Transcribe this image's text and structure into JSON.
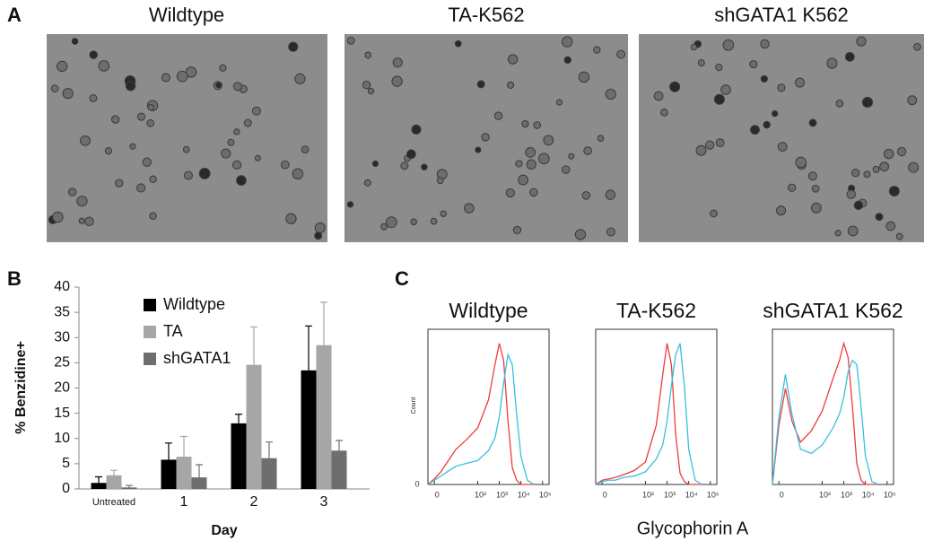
{
  "panels": {
    "a": "A",
    "b": "B",
    "c": "C"
  },
  "images": {
    "titles": [
      "Wildtype",
      "TA-K562",
      "shGATA1 K562"
    ]
  },
  "chart_data": [
    {
      "type": "bar",
      "ylabel": "% Benzidine+",
      "xlabel": "Day",
      "categories": [
        "Untreated",
        "1",
        "2",
        "3"
      ],
      "series": [
        {
          "name": "Wildtype",
          "color": "#000000",
          "values": [
            1.2,
            5.8,
            13,
            23.5
          ],
          "errors": [
            1.2,
            3.3,
            1.8,
            8.8
          ]
        },
        {
          "name": "TA",
          "color": "#a6a6a6",
          "values": [
            2.7,
            6.4,
            24.6,
            28.5
          ],
          "errors": [
            1,
            4,
            7.5,
            8.5
          ]
        },
        {
          "name": "shGATA1",
          "color": "#6e6e6e",
          "values": [
            0.3,
            2.3,
            6.1,
            7.6
          ],
          "errors": [
            0.4,
            2.5,
            3.2,
            2
          ]
        }
      ],
      "ylim": [
        0,
        40
      ],
      "yticks": [
        0,
        5,
        10,
        15,
        20,
        25,
        30,
        35,
        40
      ],
      "legend": "upper left"
    },
    {
      "type": "line",
      "title": "Wildtype",
      "ylabel": "Count",
      "x": [
        -0.3,
        0,
        0.3,
        0.6,
        1,
        1.5,
        2,
        2.5,
        2.8,
        3,
        3.2,
        3.4,
        3.6,
        3.8,
        4,
        4.3,
        4.6
      ],
      "series": [
        {
          "color": "#ee3b3b",
          "values": [
            0,
            4,
            9,
            16,
            25,
            32,
            40,
            60,
            85,
            100,
            88,
            45,
            12,
            3,
            0,
            0,
            0
          ]
        },
        {
          "color": "#35c0e0",
          "values": [
            0,
            3,
            6,
            9,
            13,
            15,
            17,
            24,
            33,
            48,
            72,
            92,
            85,
            50,
            20,
            3,
            0
          ]
        }
      ],
      "xlim": [
        -0.3,
        5.3
      ],
      "ylim": [
        0,
        110
      ],
      "yticks": [
        0
      ],
      "xticks": [
        0,
        {
          "value": 2,
          "label": "10²"
        },
        {
          "value": 3,
          "label": "10³"
        },
        {
          "value": 4,
          "label": "10⁴"
        },
        {
          "value": 5,
          "label": "10⁵"
        }
      ]
    },
    {
      "type": "line",
      "title": "TA-K562",
      "xlabel": "Glycophorin A",
      "x": [
        -0.3,
        0,
        0.3,
        0.6,
        1,
        1.5,
        2,
        2.5,
        2.8,
        3,
        3.2,
        3.4,
        3.6,
        3.8,
        4,
        4.3,
        4.6
      ],
      "series": [
        {
          "color": "#ee3b3b",
          "values": [
            0,
            3,
            4,
            5,
            7,
            10,
            16,
            42,
            78,
            100,
            85,
            35,
            8,
            2,
            0,
            0,
            0
          ]
        },
        {
          "color": "#35c0e0",
          "values": [
            0,
            2,
            3,
            3,
            5,
            6,
            9,
            18,
            28,
            45,
            70,
            92,
            100,
            70,
            25,
            3,
            0
          ]
        }
      ],
      "xlim": [
        -0.3,
        5.3
      ],
      "ylim": [
        0,
        110
      ],
      "xticks": [
        0,
        {
          "value": 2,
          "label": "10²"
        },
        {
          "value": 3,
          "label": "10³"
        },
        {
          "value": 4,
          "label": "10⁴"
        },
        {
          "value": 5,
          "label": "10⁵"
        }
      ]
    },
    {
      "type": "line",
      "title": "shGATA1 K562",
      "x": [
        -0.3,
        0,
        0.3,
        0.6,
        1,
        1.5,
        2,
        2.5,
        2.8,
        3,
        3.2,
        3.4,
        3.6,
        3.8,
        4,
        4.3,
        4.6
      ],
      "series": [
        {
          "color": "#ee3b3b",
          "values": [
            0,
            42,
            68,
            45,
            30,
            38,
            52,
            75,
            88,
            100,
            90,
            55,
            15,
            3,
            0,
            0,
            0
          ]
        },
        {
          "color": "#35c0e0",
          "values": [
            0,
            48,
            78,
            50,
            25,
            22,
            28,
            40,
            50,
            62,
            80,
            88,
            85,
            55,
            20,
            2,
            0
          ]
        }
      ],
      "xlim": [
        -0.3,
        5.3
      ],
      "ylim": [
        0,
        110
      ],
      "xticks": [
        0,
        {
          "value": 2,
          "label": "10²"
        },
        {
          "value": 3,
          "label": "10³"
        },
        {
          "value": 4,
          "label": "10⁴"
        },
        {
          "value": 5,
          "label": "10⁵"
        }
      ]
    }
  ]
}
